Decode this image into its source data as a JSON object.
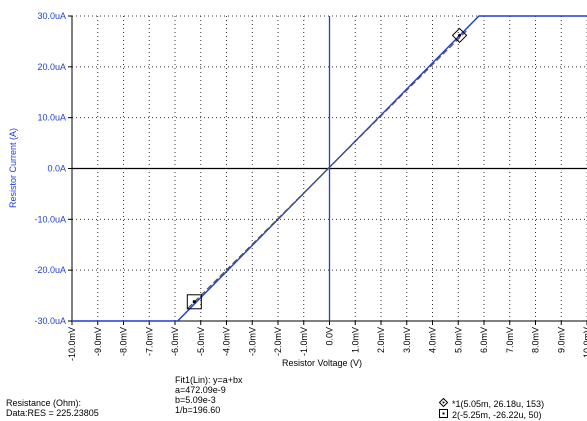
{
  "chart_data": {
    "type": "line",
    "xlabel": "Resistor Voltage (V)",
    "ylabel": "Resistor Current (A)",
    "xlim": [
      -0.01,
      0.01
    ],
    "ylim": [
      -3e-05,
      3e-05
    ],
    "x_ticks": [
      "-10.0mV",
      "-9.0mV",
      "-8.0mV",
      "-7.0mV",
      "-6.0mV",
      "-5.0mV",
      "-4.0mV",
      "-3.0mV",
      "-2.0mV",
      "-1.0mV",
      "0.0V",
      "1.0mV",
      "2.0mV",
      "3.0mV",
      "4.0mV",
      "5.0mV",
      "6.0mV",
      "7.0mV",
      "8.0mV",
      "9.0mV",
      "10.0mV"
    ],
    "x_tick_values": [
      -0.01,
      -0.009,
      -0.008,
      -0.007,
      -0.006,
      -0.005,
      -0.004,
      -0.003,
      -0.002,
      -0.001,
      0,
      0.001,
      0.002,
      0.003,
      0.004,
      0.005,
      0.006,
      0.007,
      0.008,
      0.009,
      0.01
    ],
    "y_ticks": [
      "30.0uA",
      "20.0uA",
      "10.0uA",
      "0.0A",
      "-10.0uA",
      "-20.0uA",
      "-30.0uA"
    ],
    "y_tick_values": [
      3e-05,
      2e-05,
      1e-05,
      0,
      -1e-05,
      -2e-05,
      -3e-05
    ],
    "grid": true,
    "series": [
      {
        "color": "#1f3fd0",
        "x": [
          -0.01,
          -0.0059,
          0.0058,
          0.01
        ],
        "y": [
          -3e-05,
          -3e-05,
          3e-05,
          3e-05
        ]
      },
      {
        "dashed": true,
        "color": "#555555",
        "x": [
          -0.0055,
          0.0054
        ],
        "y": [
          -2.75e-05,
          2.75e-05
        ]
      }
    ],
    "markers": [
      {
        "shape": "diamond",
        "x": 0.00505,
        "y": 2.618e-05
      },
      {
        "shape": "square",
        "x": -0.00525,
        "y": -2.622e-05
      }
    ]
  },
  "fit": {
    "title": "Fit1(Lin):  y=a+bx",
    "a": "a=472.09e-9",
    "b": "b=5.09e-3",
    "inv": "1/b=196.60"
  },
  "stats": {
    "line1": "Resistance (Ohm):",
    "line2": "Data:RES = 225.23805"
  },
  "cursors": {
    "c1": "*1(5.05m, 26.18u, 153)",
    "c2": "2(-5.25m, -26.22u, 50)",
    "icon1": "diamond-target-icon",
    "icon2": "square-target-icon"
  },
  "colors": {
    "axis": "#1f3fd0",
    "grid": "#333333"
  }
}
